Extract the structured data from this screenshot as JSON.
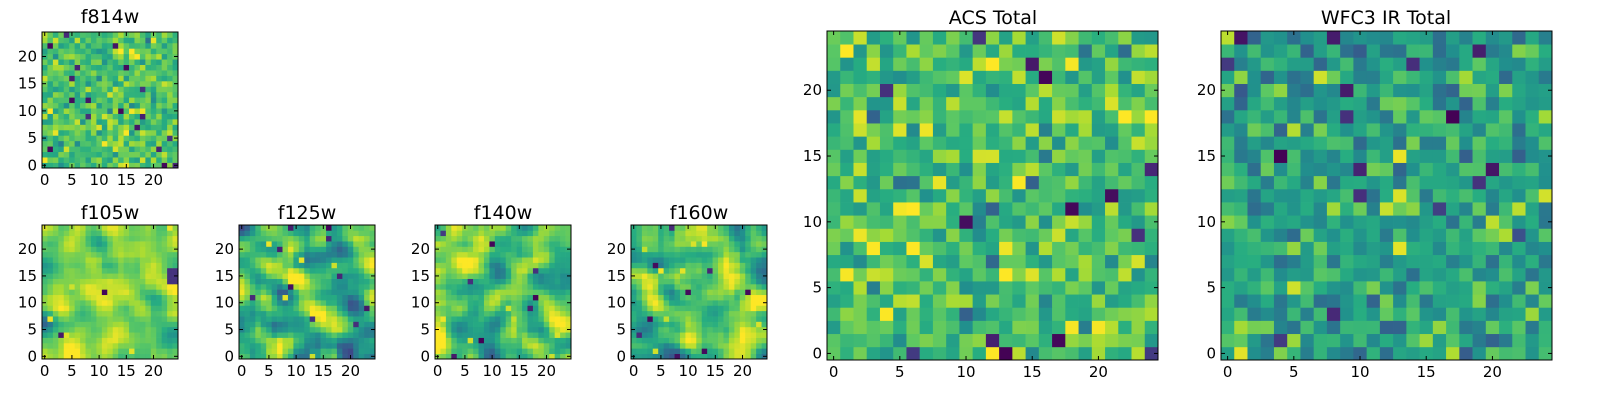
{
  "chart_data": [
    {
      "type": "heatmap",
      "title": "f814w",
      "xlabel": "",
      "ylabel": "",
      "xlim": [
        0,
        24
      ],
      "ylim": [
        0,
        24
      ],
      "grid_size": [
        25,
        25
      ],
      "xticks": [
        0,
        5,
        10,
        15,
        20
      ],
      "yticks": [
        0,
        5,
        10,
        15,
        20
      ],
      "colormap": "viridis",
      "value_range": [
        0,
        1
      ],
      "values_note": "25x25 noise field, mostly light green-yellow values (~0.65-0.85) with scattered dark outliers",
      "seed": 11,
      "mean": 0.72,
      "spread": 0.1,
      "smooth": 0,
      "outlier_count": 18,
      "bright_count": 10,
      "blobs": []
    },
    {
      "type": "heatmap",
      "title": "f105w",
      "xlabel": "",
      "ylabel": "",
      "xlim": [
        0,
        24
      ],
      "ylim": [
        0,
        24
      ],
      "grid_size": [
        25,
        25
      ],
      "xticks": [
        0,
        5,
        10,
        15,
        20
      ],
      "yticks": [
        0,
        5,
        10,
        15,
        20
      ],
      "colormap": "viridis",
      "value_range": [
        0,
        1
      ],
      "values_note": "smooth, mostly yellow-green field with a dark patch near the right edge around y=15",
      "seed": 23,
      "mean": 0.8,
      "spread": 0.1,
      "smooth": 2,
      "outlier_count": 2,
      "bright_count": 6,
      "blobs": [
        {
          "x": 24,
          "y": 15,
          "r": 1.6,
          "v": 0.15
        }
      ]
    },
    {
      "type": "heatmap",
      "title": "f125w",
      "xlabel": "",
      "ylabel": "",
      "xlim": [
        0,
        24
      ],
      "ylim": [
        0,
        24
      ],
      "grid_size": [
        25,
        25
      ],
      "xticks": [
        0,
        5,
        10,
        15,
        20
      ],
      "yticks": [
        0,
        5,
        10,
        15,
        20
      ],
      "colormap": "viridis",
      "value_range": [
        0,
        1
      ],
      "values_note": "smooth green field with several dark blue-purple spots",
      "seed": 37,
      "mean": 0.66,
      "spread": 0.16,
      "smooth": 2,
      "outlier_count": 10,
      "bright_count": 6,
      "blobs": []
    },
    {
      "type": "heatmap",
      "title": "f140w",
      "xlabel": "",
      "ylabel": "",
      "xlim": [
        0,
        24
      ],
      "ylim": [
        0,
        24
      ],
      "grid_size": [
        25,
        25
      ],
      "xticks": [
        0,
        5,
        10,
        15,
        20
      ],
      "yticks": [
        0,
        5,
        10,
        15,
        20
      ],
      "colormap": "viridis",
      "value_range": [
        0,
        1
      ],
      "values_note": "smooth yellow-green field with a few dark spots",
      "seed": 41,
      "mean": 0.72,
      "spread": 0.14,
      "smooth": 2,
      "outlier_count": 8,
      "bright_count": 8,
      "blobs": []
    },
    {
      "type": "heatmap",
      "title": "f160w",
      "xlabel": "",
      "ylabel": "",
      "xlim": [
        0,
        24
      ],
      "ylim": [
        0,
        24
      ],
      "grid_size": [
        25,
        25
      ],
      "xticks": [
        0,
        5,
        10,
        15,
        20
      ],
      "yticks": [
        0,
        5,
        10,
        15,
        20
      ],
      "colormap": "viridis",
      "value_range": [
        0,
        1
      ],
      "values_note": "smooth green-yellow field with scattered dark spots",
      "seed": 59,
      "mean": 0.72,
      "spread": 0.14,
      "smooth": 2,
      "outlier_count": 9,
      "bright_count": 8,
      "blobs": []
    },
    {
      "type": "heatmap",
      "title": "ACS Total",
      "xlabel": "",
      "ylabel": "",
      "xlim": [
        0,
        24
      ],
      "ylim": [
        0,
        24
      ],
      "grid_size": [
        25,
        25
      ],
      "xticks": [
        0,
        5,
        10,
        15,
        20
      ],
      "yticks": [
        0,
        5,
        10,
        15,
        20
      ],
      "colormap": "viridis",
      "value_range": [
        0,
        1
      ],
      "values_note": "blocky noise, mostly green to yellow, with isolated dark purple cells",
      "seed": 71,
      "mean": 0.7,
      "spread": 0.13,
      "smooth": 0,
      "outlier_count": 14,
      "bright_count": 14,
      "blobs": []
    },
    {
      "type": "heatmap",
      "title": "WFC3 IR Total",
      "xlabel": "",
      "ylabel": "",
      "xlim": [
        0,
        24
      ],
      "ylim": [
        0,
        24
      ],
      "grid_size": [
        25,
        25
      ],
      "xticks": [
        0,
        5,
        10,
        15,
        20
      ],
      "yticks": [
        0,
        5,
        10,
        15,
        20
      ],
      "colormap": "viridis",
      "value_range": [
        0,
        1
      ],
      "values_note": "blocky noise, mostly teal-green, yellow streak near (12-14, 12), dark purple cells scattered",
      "seed": 83,
      "mean": 0.58,
      "spread": 0.13,
      "smooth": 0,
      "outlier_count": 16,
      "bright_count": 6,
      "blobs": [
        {
          "x": 13,
          "y": 12,
          "r": 0.9,
          "v": 0.95
        },
        {
          "x": 12,
          "y": 11,
          "r": 0.6,
          "v": 0.92
        }
      ]
    }
  ]
}
